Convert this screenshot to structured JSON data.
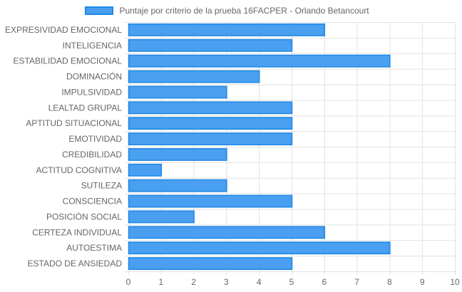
{
  "chart_data": {
    "type": "bar",
    "orientation": "horizontal",
    "categories": [
      "EXPRESIVIDAD EMOCIONAL",
      "INTELIGENCIA",
      "ESTABILIDAD EMOCIONAL",
      "DOMINACIÓN",
      "IMPULSIVIDAD",
      "LEALTAD GRUPAL",
      "APTITUD SITUACIONAL",
      "EMOTIVIDAD",
      "CREDIBILIDAD",
      "ACTITUD COGNITIVA",
      "SUTILEZA",
      "CONSCIENCIA",
      "POSICIÓN SOCIAL",
      "CERTEZA INDIVIDUAL",
      "AUTOESTIMA",
      "ESTADO DE ANSIEDAD"
    ],
    "series": [
      {
        "name": "Puntaje por criterio de la prueba 16FACPER - Orlando Betancourt",
        "values": [
          6,
          5,
          8,
          4,
          3,
          5,
          5,
          5,
          3,
          1,
          3,
          5,
          2,
          6,
          8,
          5
        ]
      }
    ],
    "xlim": [
      0,
      10
    ],
    "x_ticks": [
      "0",
      "1",
      "2",
      "3",
      "4",
      "5",
      "6",
      "7",
      "8",
      "9",
      "10"
    ],
    "grid": true,
    "legend_position": "top-center",
    "colors": {
      "bar_fill": "#4a9ff0",
      "bar_border": "#1e88e5",
      "grid": "#e1e1e1",
      "text": "#666666"
    }
  }
}
